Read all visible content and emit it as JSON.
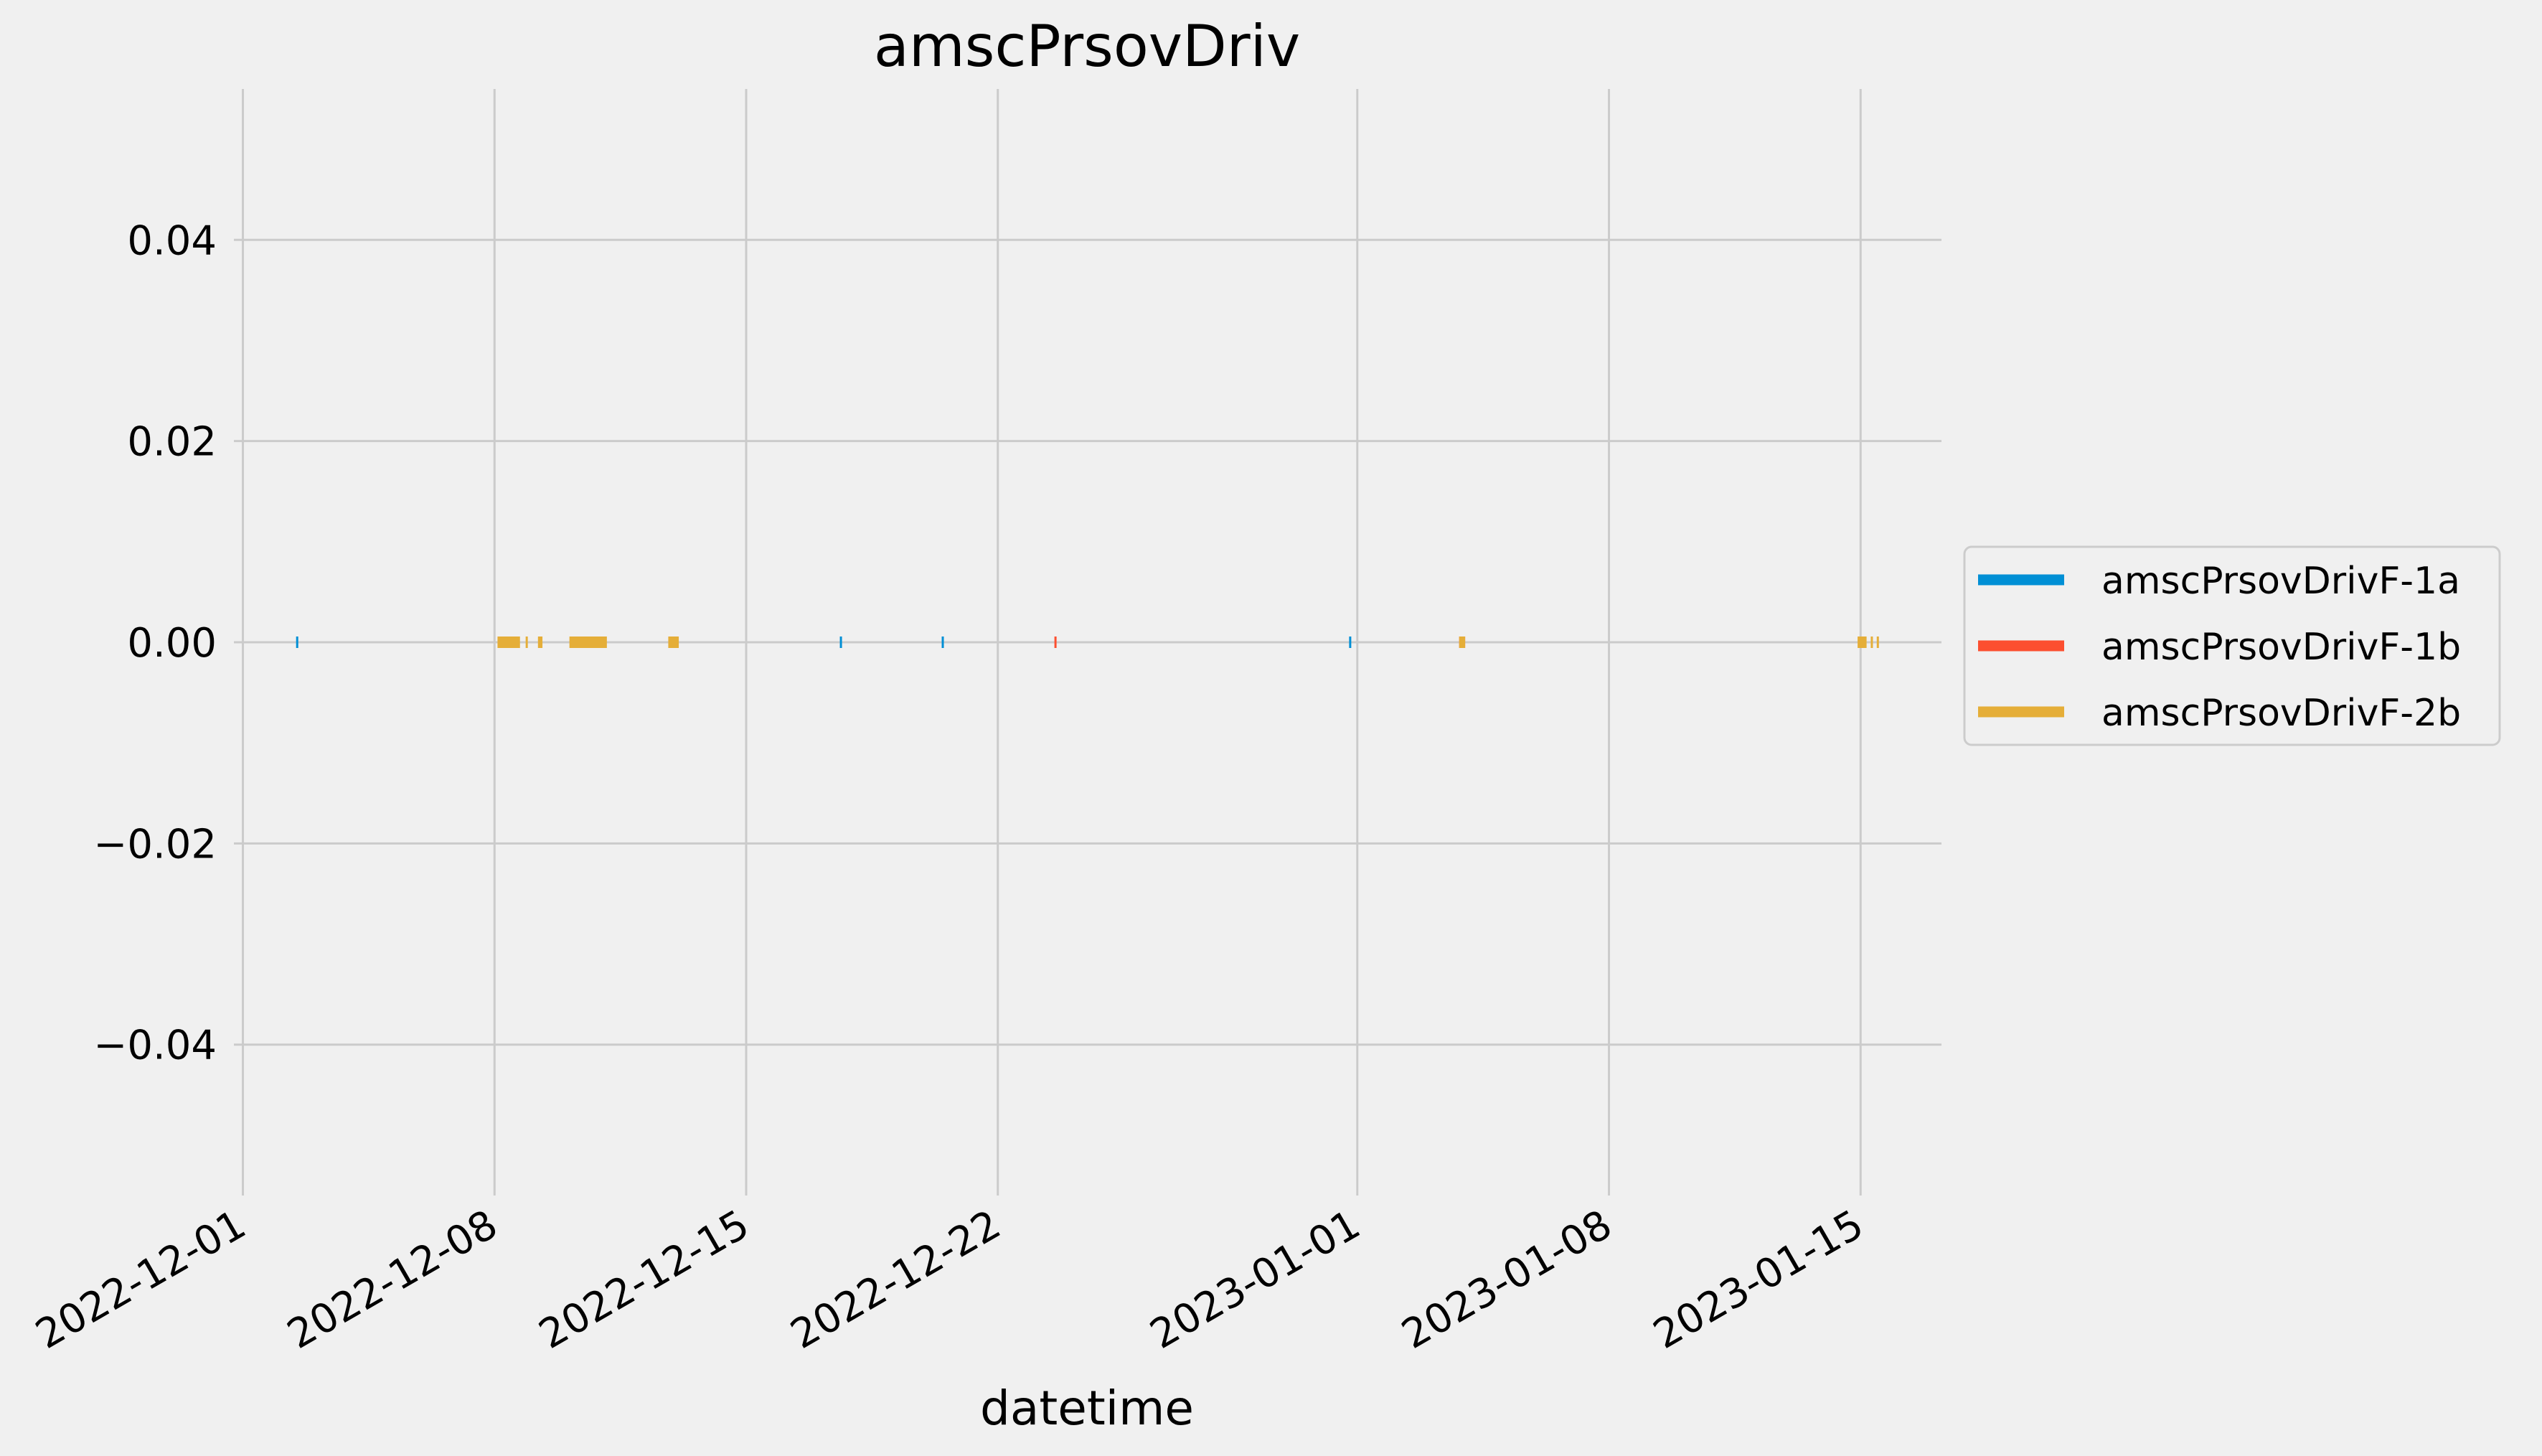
{
  "chart_data": {
    "type": "line",
    "title": "amscPrsovDriv",
    "xlabel": "datetime",
    "ylabel": "",
    "x_type": "datetime",
    "xlim": [
      "2022-11-30T18:00",
      "2023-01-17T06:00"
    ],
    "ylim": [
      -0.055,
      0.055
    ],
    "x_ticks": [
      "2022-12-01",
      "2022-12-08",
      "2022-12-15",
      "2022-12-22",
      "2023-01-01",
      "2023-01-08",
      "2023-01-15"
    ],
    "y_ticks": [
      0.04,
      0.02,
      0.0,
      -0.02,
      -0.04
    ],
    "y_tick_labels": [
      "0.04",
      "0.02",
      "0.00",
      "−0.02",
      "−0.04"
    ],
    "grid": true,
    "legend_position": "right, outside plot",
    "series": [
      {
        "name": "amscPrsovDrivF-1a",
        "color": "#008fd5",
        "segments": [
          [
            "2022-12-02T12:00",
            "2022-12-02T12:30"
          ],
          [
            "2022-12-17T15:00",
            "2022-12-17T15:30"
          ],
          [
            "2022-12-20T11:00",
            "2022-12-20T11:30"
          ],
          [
            "2022-12-31T19:00",
            "2022-12-31T19:30"
          ]
        ],
        "values": 0
      },
      {
        "name": "amscPrsovDrivF-1b",
        "color": "#fc4f30",
        "segments": [
          [
            "2022-12-23T14:00",
            "2022-12-23T15:00"
          ],
          [
            "2023-01-03T20:00",
            "2023-01-04T00:00"
          ]
        ],
        "values": 0
      },
      {
        "name": "amscPrsovDrivF-2b",
        "color": "#e5ae38",
        "segments": [
          [
            "2022-12-08T02:00",
            "2022-12-08T17:00"
          ],
          [
            "2022-12-08T21:00",
            "2022-12-08T22:00"
          ],
          [
            "2022-12-09T05:00",
            "2022-12-09T08:00"
          ],
          [
            "2022-12-10T02:00",
            "2022-12-11T03:00"
          ],
          [
            "2022-12-12T20:00",
            "2022-12-13T03:00"
          ],
          [
            "2023-01-03T20:00",
            "2023-01-04T00:00"
          ],
          [
            "2023-01-14T22:00",
            "2023-01-15T04:00"
          ],
          [
            "2023-01-15T07:00",
            "2023-01-15T08:00"
          ],
          [
            "2023-01-15T11:00",
            "2023-01-15T12:00"
          ]
        ],
        "values": 0
      }
    ]
  }
}
